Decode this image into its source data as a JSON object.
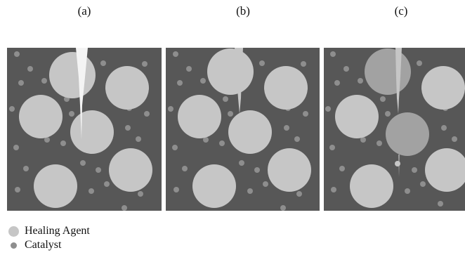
{
  "panels": [
    {
      "label": "(a)",
      "stage": "crack-approaching"
    },
    {
      "label": "(b)",
      "stage": "capsule-ruptured"
    },
    {
      "label": "(c)",
      "stage": "healing-agent-released"
    }
  ],
  "legend": {
    "healing_agent": "Healing Agent",
    "catalyst": "Catalyst"
  },
  "colors": {
    "matrix": "#575757",
    "healing_agent": "#c6c6c6",
    "healed_capsule": "#a2a2a2",
    "catalyst": "#8e8e8e",
    "crack": "#f4f4f4",
    "background": "#ffffff"
  }
}
